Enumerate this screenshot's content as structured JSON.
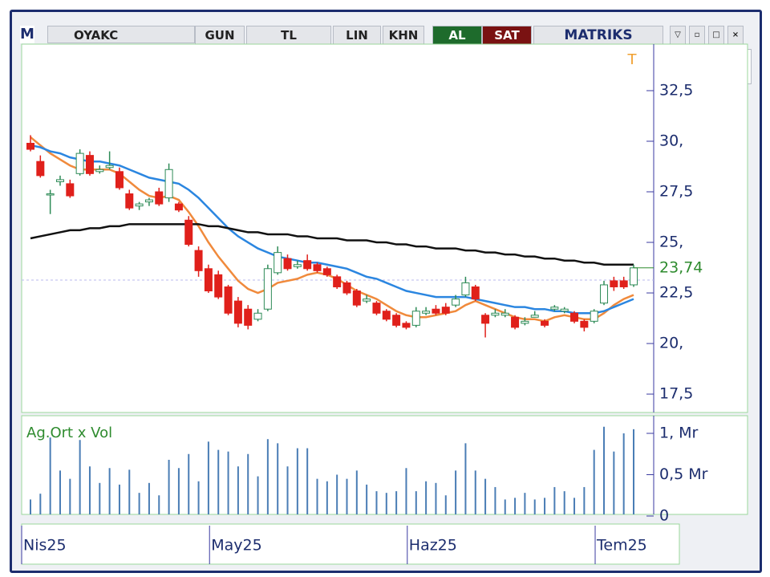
{
  "toolbar": {
    "logo": "M",
    "symbol": "OYAKC",
    "period": "GUN",
    "currency": "TL",
    "scale": "LIN",
    "mode": "KHN",
    "buy": "AL",
    "sell": "SAT",
    "brand": "MATRIKS"
  },
  "chart_data": [
    {
      "type": "candlestick",
      "marker": "T",
      "open": [
        29.9,
        29.0,
        27.4,
        28.0,
        27.9,
        28.4,
        29.3,
        28.5,
        28.7,
        28.5,
        27.4,
        26.8,
        27.0,
        27.5,
        27.2,
        26.9,
        26.1,
        24.6,
        23.7,
        23.4,
        22.8,
        22.1,
        21.7,
        21.2,
        21.7,
        23.5,
        24.2,
        23.8,
        24.1,
        23.9,
        23.7,
        23.3,
        23.0,
        22.6,
        22.1,
        22.0,
        21.6,
        21.4,
        21.0,
        20.9,
        21.5,
        21.7,
        21.8,
        21.9,
        22.4,
        22.8,
        21.4,
        21.4,
        21.4,
        21.3,
        21.0,
        21.3,
        21.1,
        21.7,
        21.6,
        21.5,
        21.1,
        21.1,
        22.0,
        23.1,
        23.1,
        22.9
      ],
      "high": [
        30.3,
        29.3,
        27.6,
        28.3,
        28.1,
        29.6,
        29.5,
        28.8,
        29.5,
        28.7,
        27.6,
        27.0,
        27.2,
        27.7,
        28.9,
        27.0,
        26.3,
        24.8,
        23.9,
        23.6,
        22.9,
        22.3,
        21.9,
        21.7,
        23.9,
        24.8,
        24.4,
        24.1,
        24.4,
        24.0,
        23.8,
        23.4,
        23.1,
        22.7,
        22.4,
        22.1,
        21.7,
        21.5,
        21.1,
        21.8,
        21.8,
        21.9,
        22.0,
        22.4,
        23.3,
        22.9,
        21.5,
        21.7,
        21.7,
        21.4,
        21.3,
        21.6,
        21.2,
        21.9,
        21.8,
        21.6,
        21.2,
        21.7,
        23.1,
        23.3,
        23.3,
        23.9
      ],
      "low": [
        29.5,
        28.2,
        26.4,
        27.8,
        27.2,
        28.3,
        28.3,
        28.4,
        28.6,
        27.6,
        26.6,
        26.6,
        26.8,
        26.8,
        27.0,
        26.5,
        24.8,
        23.3,
        22.5,
        22.2,
        21.4,
        20.8,
        20.7,
        21.1,
        21.6,
        23.4,
        23.6,
        23.7,
        23.6,
        23.5,
        23.3,
        22.7,
        22.4,
        21.8,
        22.0,
        21.4,
        21.1,
        20.8,
        20.7,
        20.8,
        21.4,
        21.4,
        21.4,
        21.8,
        22.3,
        22.1,
        20.3,
        21.3,
        21.3,
        20.7,
        20.9,
        21.3,
        20.8,
        21.6,
        21.5,
        21.0,
        20.6,
        21.0,
        21.9,
        22.6,
        22.7,
        22.8
      ],
      "close": [
        29.6,
        28.3,
        27.4,
        28.1,
        27.3,
        29.4,
        28.4,
        28.6,
        28.8,
        27.7,
        26.7,
        26.9,
        27.1,
        26.9,
        28.6,
        26.6,
        24.9,
        23.6,
        22.6,
        22.3,
        21.5,
        21.0,
        20.9,
        21.5,
        23.7,
        24.5,
        23.7,
        23.9,
        23.7,
        23.6,
        23.4,
        22.8,
        22.5,
        21.9,
        22.2,
        21.5,
        21.2,
        20.9,
        20.8,
        21.6,
        21.6,
        21.5,
        21.5,
        22.2,
        23.0,
        22.2,
        21.0,
        21.5,
        21.5,
        20.8,
        21.1,
        21.4,
        20.9,
        21.8,
        21.7,
        21.1,
        20.8,
        21.6,
        22.9,
        22.8,
        22.8,
        23.74
      ],
      "series": [
        {
          "color": "#f08a3c",
          "values": [
            30.2,
            29.8,
            29.4,
            29.1,
            28.8,
            28.6,
            28.6,
            28.6,
            28.6,
            28.4,
            28.0,
            27.6,
            27.3,
            27.2,
            27.3,
            27.1,
            26.5,
            25.8,
            25.0,
            24.3,
            23.7,
            23.1,
            22.7,
            22.5,
            22.7,
            23.0,
            23.1,
            23.2,
            23.4,
            23.5,
            23.4,
            23.2,
            22.9,
            22.6,
            22.4,
            22.2,
            21.9,
            21.6,
            21.4,
            21.3,
            21.3,
            21.4,
            21.5,
            21.6,
            21.9,
            22.1,
            21.9,
            21.7,
            21.5,
            21.3,
            21.2,
            21.2,
            21.1,
            21.3,
            21.4,
            21.3,
            21.2,
            21.2,
            21.5,
            21.9,
            22.2,
            22.4
          ]
        },
        {
          "color": "#2b86e0",
          "values": [
            29.8,
            29.7,
            29.5,
            29.4,
            29.2,
            29.1,
            29.0,
            29.0,
            28.9,
            28.8,
            28.6,
            28.4,
            28.2,
            28.1,
            28.0,
            27.9,
            27.6,
            27.2,
            26.7,
            26.2,
            25.7,
            25.3,
            25.0,
            24.7,
            24.5,
            24.3,
            24.2,
            24.1,
            24.0,
            24.0,
            23.9,
            23.8,
            23.7,
            23.5,
            23.3,
            23.2,
            23.0,
            22.8,
            22.6,
            22.5,
            22.4,
            22.3,
            22.3,
            22.3,
            22.3,
            22.2,
            22.1,
            22.0,
            21.9,
            21.8,
            21.8,
            21.7,
            21.7,
            21.6,
            21.6,
            21.5,
            21.5,
            21.5,
            21.6,
            21.8,
            22.0,
            22.2
          ]
        },
        {
          "color": "#111111",
          "values": [
            25.2,
            25.3,
            25.4,
            25.5,
            25.6,
            25.6,
            25.7,
            25.7,
            25.8,
            25.8,
            25.9,
            25.9,
            25.9,
            25.9,
            25.9,
            25.9,
            25.9,
            25.9,
            25.8,
            25.8,
            25.7,
            25.6,
            25.5,
            25.5,
            25.4,
            25.4,
            25.4,
            25.3,
            25.3,
            25.2,
            25.2,
            25.2,
            25.1,
            25.1,
            25.1,
            25.0,
            25.0,
            24.9,
            24.9,
            24.8,
            24.8,
            24.7,
            24.7,
            24.7,
            24.6,
            24.6,
            24.5,
            24.5,
            24.4,
            24.4,
            24.3,
            24.3,
            24.2,
            24.2,
            24.1,
            24.1,
            24.0,
            24.0,
            23.9,
            23.9,
            23.9,
            23.9
          ]
        }
      ],
      "up_color": "#2e8b57",
      "down_color": "#e0201b",
      "last": {
        "value": 23.74,
        "label": "23,74"
      },
      "ylim": [
        16.63,
        34.8
      ],
      "yticks": [
        {
          "value": 32.5,
          "label": "32,5"
        },
        {
          "value": 30,
          "label": "30,"
        },
        {
          "value": 27.5,
          "label": "27,5"
        },
        {
          "value": 25,
          "label": "25,"
        },
        {
          "value": 22.5,
          "label": "22,5"
        },
        {
          "value": 20,
          "label": "20,"
        },
        {
          "value": 17.5,
          "label": "17,5"
        }
      ]
    },
    {
      "type": "bar",
      "title": "Ag.Ort x Vol",
      "color": "#4a7db5",
      "categories": [
        "Nis25",
        null,
        null,
        null,
        null,
        null,
        null,
        null,
        null,
        null,
        null,
        null,
        null,
        null,
        null,
        null,
        null,
        null,
        null,
        "May25",
        null,
        null,
        null,
        null,
        null,
        null,
        null,
        null,
        null,
        null,
        null,
        null,
        null,
        null,
        null,
        null,
        null,
        null,
        null,
        "Haz25",
        null,
        null,
        null,
        null,
        null,
        null,
        null,
        null,
        null,
        null,
        null,
        null,
        null,
        null,
        null,
        null,
        null,
        null,
        "Tem25",
        null,
        null,
        null
      ],
      "values": [
        0.2,
        0.27,
        0.95,
        0.55,
        0.45,
        0.92,
        0.6,
        0.4,
        0.58,
        0.38,
        0.56,
        0.28,
        0.4,
        0.25,
        0.68,
        0.58,
        0.75,
        0.42,
        0.9,
        0.8,
        0.78,
        0.6,
        0.75,
        0.48,
        0.93,
        0.88,
        0.6,
        0.82,
        0.82,
        0.45,
        0.42,
        0.5,
        0.45,
        0.55,
        0.38,
        0.3,
        0.28,
        0.3,
        0.58,
        0.3,
        0.42,
        0.4,
        0.25,
        0.55,
        0.88,
        0.55,
        0.45,
        0.35,
        0.2,
        0.22,
        0.28,
        0.2,
        0.22,
        0.35,
        0.3,
        0.22,
        0.35,
        0.8,
        1.08,
        0.78,
        1.0,
        1.05
      ],
      "ylim": [
        0,
        1.2
      ],
      "yticks": [
        {
          "value": 1,
          "label": "1, Mr"
        },
        {
          "value": 0.5,
          "label": "0,5 Mr"
        },
        0
      ]
    }
  ]
}
